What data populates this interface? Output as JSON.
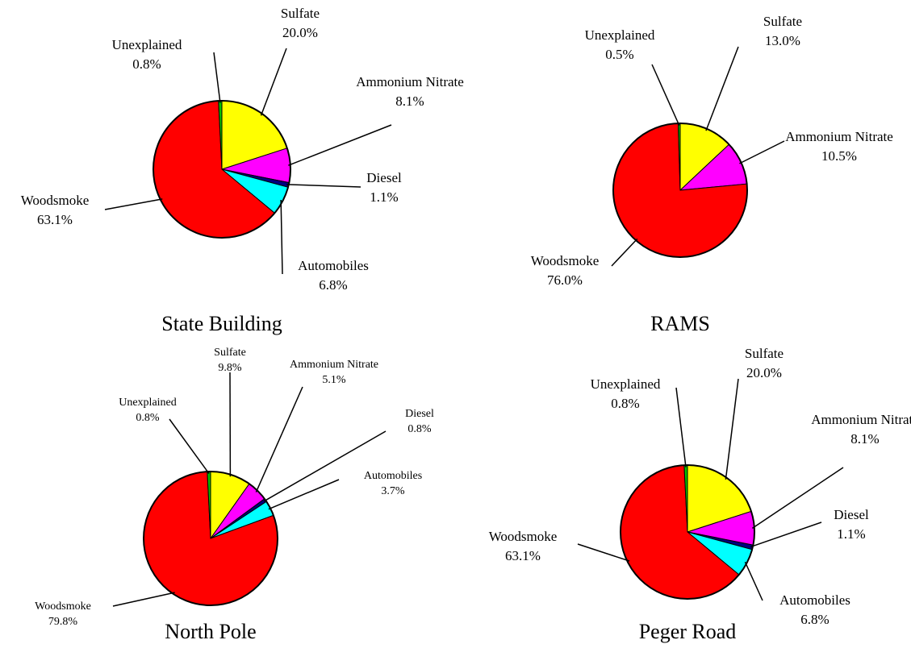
{
  "chart_data": [
    {
      "type": "pie",
      "title": "State Building",
      "categories": [
        "Sulfate",
        "Ammonium Nitrate",
        "Diesel",
        "Automobiles",
        "Woodsmoke",
        "Unexplained"
      ],
      "values": [
        20.0,
        8.1,
        1.1,
        6.8,
        63.1,
        0.8
      ],
      "value_labels": [
        "20.0%",
        "8.1%",
        "1.1%",
        "6.8%",
        "63.1%",
        "0.8%"
      ],
      "colors": [
        "#ffff00",
        "#ff00ff",
        "#000080",
        "#00ffff",
        "#ff0000",
        "#00c000"
      ]
    },
    {
      "type": "pie",
      "title": "RAMS",
      "categories": [
        "Sulfate",
        "Ammonium Nitrate",
        "Woodsmoke",
        "Unexplained"
      ],
      "values": [
        13.0,
        10.5,
        76.0,
        0.5
      ],
      "value_labels": [
        "13.0%",
        "10.5%",
        "76.0%",
        "0.5%"
      ],
      "colors": [
        "#ffff00",
        "#ff00ff",
        "#ff0000",
        "#00c000"
      ]
    },
    {
      "type": "pie",
      "title": "North Pole",
      "categories": [
        "Sulfate",
        "Ammonium Nitrate",
        "Diesel",
        "Automobiles",
        "Woodsmoke",
        "Unexplained"
      ],
      "values": [
        9.8,
        5.1,
        0.8,
        3.7,
        79.8,
        0.8
      ],
      "value_labels": [
        "9.8%",
        "5.1%",
        "0.8%",
        "3.7%",
        "79.8%",
        "0.8%"
      ],
      "colors": [
        "#ffff00",
        "#ff00ff",
        "#000080",
        "#00ffff",
        "#ff0000",
        "#00c000"
      ]
    },
    {
      "type": "pie",
      "title": "Peger Road",
      "categories": [
        "Sulfate",
        "Ammonium Nitrate",
        "Diesel",
        "Automobiles",
        "Woodsmoke",
        "Unexplained"
      ],
      "values": [
        20.0,
        8.1,
        1.1,
        6.8,
        63.1,
        0.8
      ],
      "value_labels": [
        "20.0%",
        "8.1%",
        "1.1%",
        "6.8%",
        "63.1%",
        "0.8%"
      ],
      "colors": [
        "#ffff00",
        "#ff00ff",
        "#000080",
        "#00ffff",
        "#ff0000",
        "#00c000"
      ]
    }
  ]
}
